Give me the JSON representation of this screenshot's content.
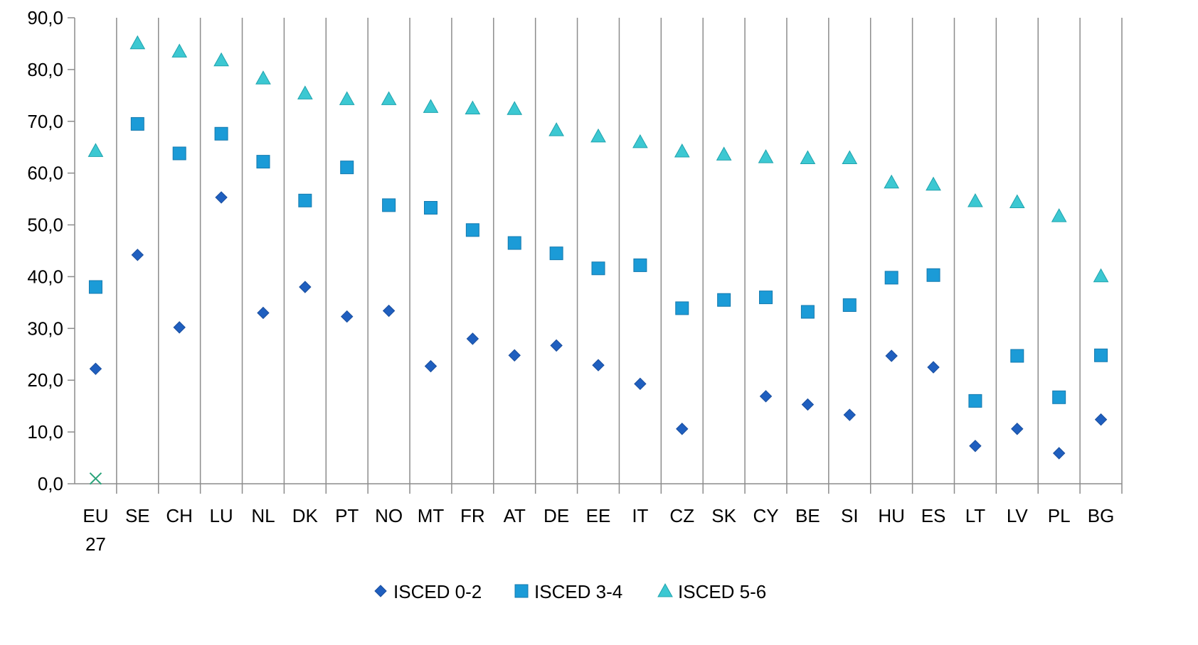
{
  "chart_data": {
    "type": "scatter",
    "categories": [
      [
        "EU",
        "27"
      ],
      [
        "SE"
      ],
      [
        "CH"
      ],
      [
        "LU"
      ],
      [
        "NL"
      ],
      [
        "DK"
      ],
      [
        "PT"
      ],
      [
        "NO"
      ],
      [
        "MT"
      ],
      [
        "FR"
      ],
      [
        "AT"
      ],
      [
        "DE"
      ],
      [
        "EE"
      ],
      [
        "IT"
      ],
      [
        "CZ"
      ],
      [
        "SK"
      ],
      [
        "CY"
      ],
      [
        "BE"
      ],
      [
        "SI"
      ],
      [
        "HU"
      ],
      [
        "ES"
      ],
      [
        "LT"
      ],
      [
        "LV"
      ],
      [
        "PL"
      ],
      [
        "BG"
      ]
    ],
    "ylim": [
      0,
      90
    ],
    "yticks": [
      "0,0",
      "10,0",
      "20,0",
      "30,0",
      "40,0",
      "50,0",
      "60,0",
      "70,0",
      "80,0",
      "90,0"
    ],
    "grid": "vertical category separators",
    "legend_position": "bottom",
    "series": [
      {
        "name": "ISCED 0-2",
        "marker": "diamond",
        "color": "#1F5FBF",
        "values": [
          22.2,
          44.2,
          30.2,
          55.3,
          33.0,
          38.0,
          32.3,
          33.4,
          22.7,
          28.0,
          24.8,
          26.7,
          22.9,
          19.3,
          10.6,
          null,
          16.9,
          15.3,
          13.3,
          24.7,
          22.5,
          7.3,
          10.6,
          5.9,
          12.4
        ]
      },
      {
        "name": "ISCED 3-4",
        "marker": "square",
        "color": "#1B9BD7",
        "values": [
          38.0,
          69.5,
          63.8,
          67.6,
          62.2,
          54.7,
          61.1,
          53.8,
          53.3,
          49.0,
          46.5,
          44.5,
          41.6,
          42.2,
          33.9,
          35.5,
          36.0,
          33.2,
          34.5,
          39.8,
          40.3,
          16.0,
          24.7,
          16.7,
          24.8
        ]
      },
      {
        "name": "ISCED 5-6",
        "marker": "triangle",
        "color": "#3CC8D2",
        "values": [
          64.3,
          85.1,
          83.5,
          81.8,
          78.3,
          75.4,
          74.3,
          74.3,
          72.8,
          72.5,
          72.4,
          68.3,
          67.1,
          66.0,
          64.2,
          63.6,
          63.1,
          62.9,
          62.9,
          58.2,
          57.8,
          54.6,
          54.4,
          51.7,
          40.1
        ]
      }
    ],
    "extra_points": [
      {
        "category_index": 0,
        "value": 1.0,
        "marker": "x",
        "color": "#2AA37A"
      }
    ]
  }
}
